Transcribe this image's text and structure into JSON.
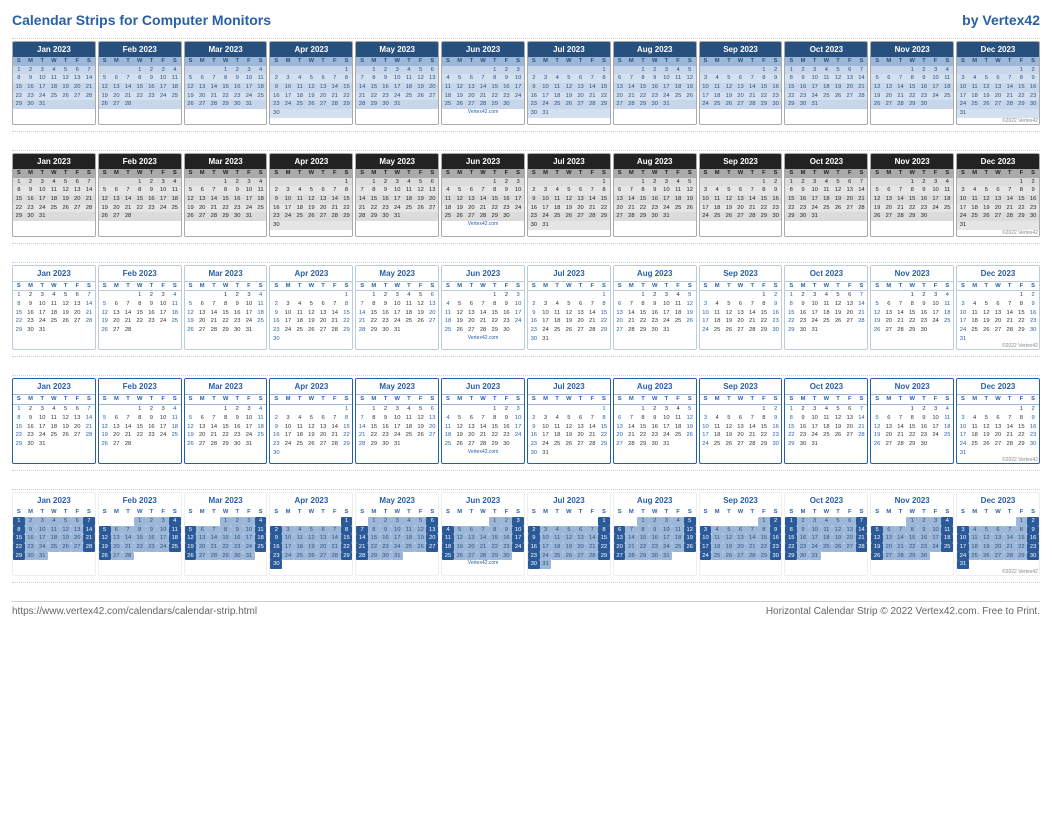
{
  "header": {
    "title": "Calendar Strips for Computer Monitors",
    "brand": "by Vertex42"
  },
  "year": 2023,
  "months": [
    {
      "name": "Jan 2023",
      "start": 0,
      "days": 31
    },
    {
      "name": "Feb 2023",
      "start": 3,
      "days": 28
    },
    {
      "name": "Mar 2023",
      "start": 3,
      "days": 31
    },
    {
      "name": "Apr 2023",
      "start": 6,
      "days": 30
    },
    {
      "name": "May 2023",
      "start": 1,
      "days": 31
    },
    {
      "name": "Jun 2023",
      "start": 4,
      "days": 30
    },
    {
      "name": "Jul 2023",
      "start": 6,
      "days": 31
    },
    {
      "name": "Aug 2023",
      "start": 2,
      "days": 31
    },
    {
      "name": "Sep 2023",
      "start": 5,
      "days": 30
    },
    {
      "name": "Oct 2023",
      "start": 0,
      "days": 31
    },
    {
      "name": "Nov 2023",
      "start": 3,
      "days": 30
    },
    {
      "name": "Dec 2023",
      "start": 5,
      "days": 31
    }
  ],
  "dow": [
    "S",
    "M",
    "T",
    "W",
    "T",
    "F",
    "S"
  ],
  "strips": [
    {
      "style": "s-blue"
    },
    {
      "style": "s-gray"
    },
    {
      "style": "s-plain"
    },
    {
      "style": "s-plain2"
    },
    {
      "style": "s-cells"
    }
  ],
  "watermark": "Vertex42.com",
  "copyright_small": "©2022 Vertex42",
  "footer": {
    "url": "https://www.vertex42.com/calendars/calendar-strip.html",
    "legal": "Horizontal Calendar Strip © 2022 Vertex42.com. Free to Print."
  },
  "colors": {
    "brand_blue": "#2860a8",
    "dark_blue": "#27507e",
    "light_blue": "#9db7d9",
    "pale_blue": "#c7d6ea",
    "dark_gray": "#222222",
    "mid_gray": "#aaaaaa",
    "light_gray": "#dcdcdc"
  }
}
